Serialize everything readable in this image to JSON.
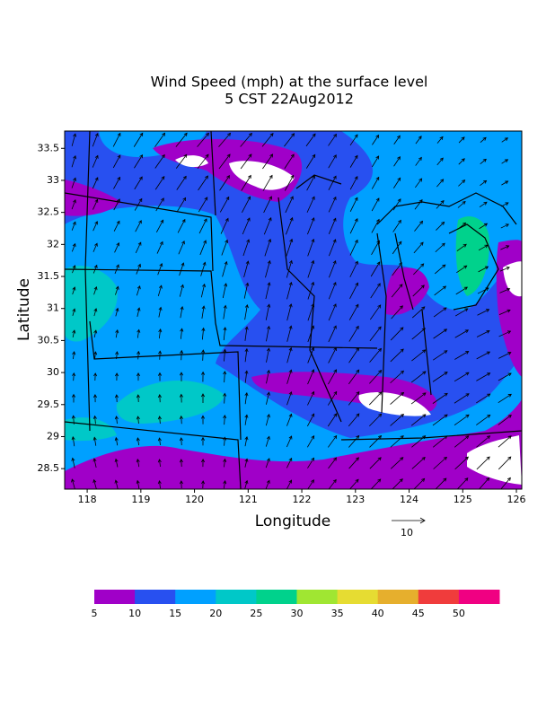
{
  "title": "Wind Speed (mph) at the surface level",
  "subtitle": "5 CST 22Aug2012",
  "x_label": "Longitude",
  "y_label": "Latitude",
  "xlim": [
    117.58,
    126.1
  ],
  "ylim": [
    28.18,
    33.77
  ],
  "xticks": [
    118,
    119,
    120,
    121,
    122,
    123,
    124,
    125,
    126
  ],
  "yticks": [
    28.5,
    29,
    29.5,
    30,
    30.5,
    31,
    31.5,
    32,
    32.5,
    33,
    33.5
  ],
  "reference_vector": 10,
  "colorbar": {
    "levels": [
      5,
      10,
      15,
      20,
      25,
      30,
      35,
      40,
      45,
      50
    ],
    "colors": [
      "#a000c8",
      "#2850f0",
      "#00a0ff",
      "#00c8c8",
      "#00d28c",
      "#a0e632",
      "#e6dc32",
      "#e6af2d",
      "#f03c3c",
      "#f00082"
    ]
  }
}
